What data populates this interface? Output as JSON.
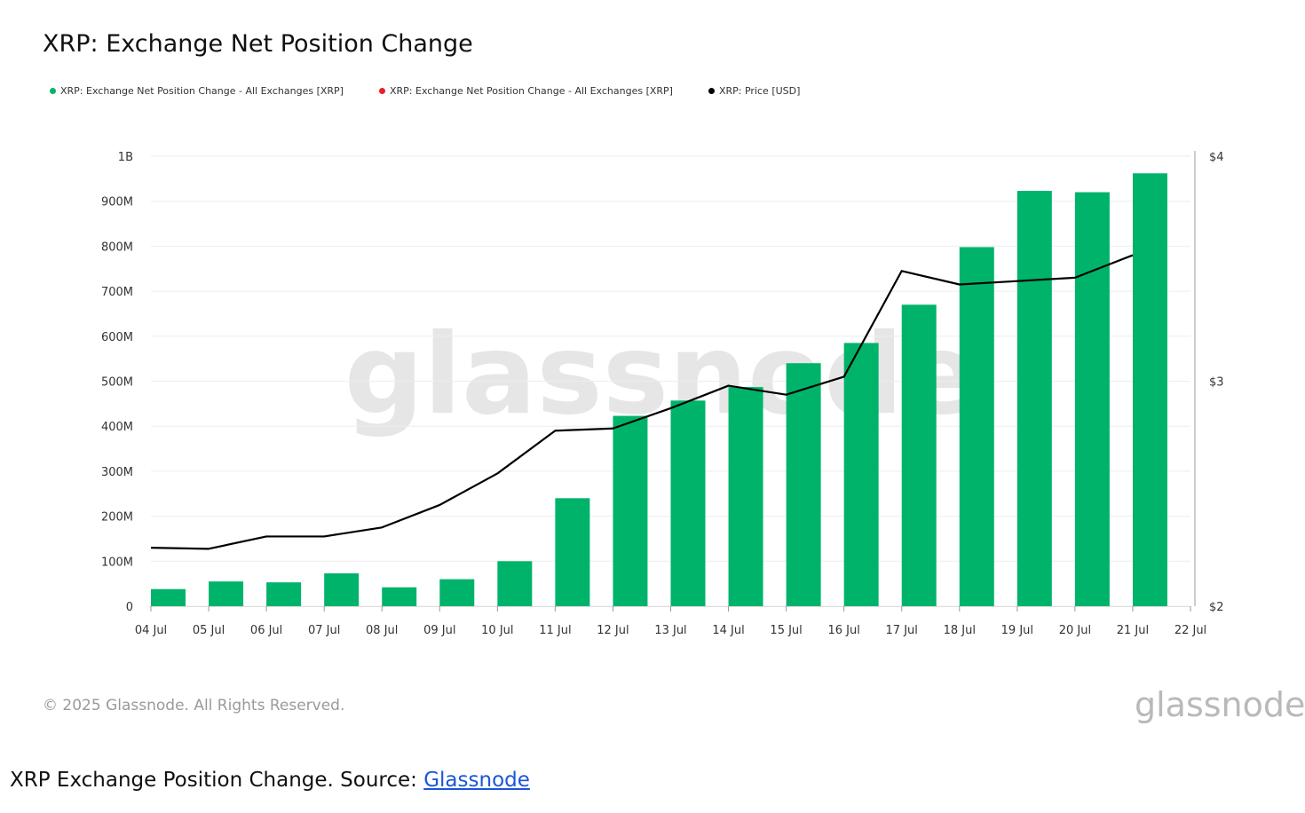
{
  "title": "XRP: Exchange Net Position Change",
  "legend": [
    {
      "label": "XRP: Exchange Net Position Change - All Exchanges [XRP]",
      "color": "#00b36b"
    },
    {
      "label": "XRP: Exchange Net Position Change - All Exchanges [XRP]",
      "color": "#e8202a"
    },
    {
      "label": "XRP: Price [USD]",
      "color": "#000000"
    }
  ],
  "watermark": "glassnode",
  "footer": {
    "copyright": "© 2025 Glassnode. All Rights Reserved.",
    "brand": "glassnode"
  },
  "caption": {
    "text": "XRP Exchange Position Change. Source: ",
    "link_text": "Glassnode"
  },
  "chart_data": {
    "type": "bar",
    "title": "XRP: Exchange Net Position Change",
    "categories": [
      "04 Jul",
      "05 Jul",
      "06 Jul",
      "07 Jul",
      "08 Jul",
      "09 Jul",
      "10 Jul",
      "11 Jul",
      "12 Jul",
      "13 Jul",
      "14 Jul",
      "15 Jul",
      "16 Jul",
      "17 Jul",
      "18 Jul",
      "19 Jul",
      "20 Jul",
      "21 Jul"
    ],
    "x_tick_labels": [
      "04 Jul",
      "05 Jul",
      "06 Jul",
      "07 Jul",
      "08 Jul",
      "09 Jul",
      "10 Jul",
      "11 Jul",
      "12 Jul",
      "13 Jul",
      "14 Jul",
      "15 Jul",
      "16 Jul",
      "17 Jul",
      "18 Jul",
      "19 Jul",
      "20 Jul",
      "21 Jul",
      "22 Jul"
    ],
    "series": [
      {
        "name": "XRP: Exchange Net Position Change - All Exchanges [XRP]",
        "type": "bar",
        "axis": "left",
        "color": "#00b36b",
        "values": [
          38000000,
          55000000,
          53000000,
          73000000,
          42000000,
          60000000,
          100000000,
          240000000,
          423000000,
          457000000,
          487000000,
          540000000,
          585000000,
          670000000,
          798000000,
          923000000,
          920000000,
          962000000
        ]
      },
      {
        "name": "XRP: Price [USD]",
        "type": "line",
        "axis": "right",
        "color": "#000000",
        "values": [
          2.26,
          2.255,
          2.31,
          2.31,
          2.35,
          2.45,
          2.59,
          2.78,
          2.79,
          2.88,
          2.98,
          2.94,
          3.02,
          3.49,
          3.43,
          3.445,
          3.46,
          3.56
        ]
      }
    ],
    "y_left": {
      "ylim": [
        0,
        1000000000
      ],
      "ticks": [
        0,
        100000000,
        200000000,
        300000000,
        400000000,
        500000000,
        600000000,
        700000000,
        800000000,
        900000000,
        1000000000
      ],
      "tick_labels": [
        "0",
        "100M",
        "200M",
        "300M",
        "400M",
        "500M",
        "600M",
        "700M",
        "800M",
        "900M",
        "1B"
      ]
    },
    "y_right": {
      "ylim": [
        2,
        4
      ],
      "ticks": [
        2,
        3,
        4
      ],
      "tick_labels": [
        "$2",
        "$3",
        "$4"
      ]
    },
    "grid": true,
    "legend_position": "top-left"
  }
}
